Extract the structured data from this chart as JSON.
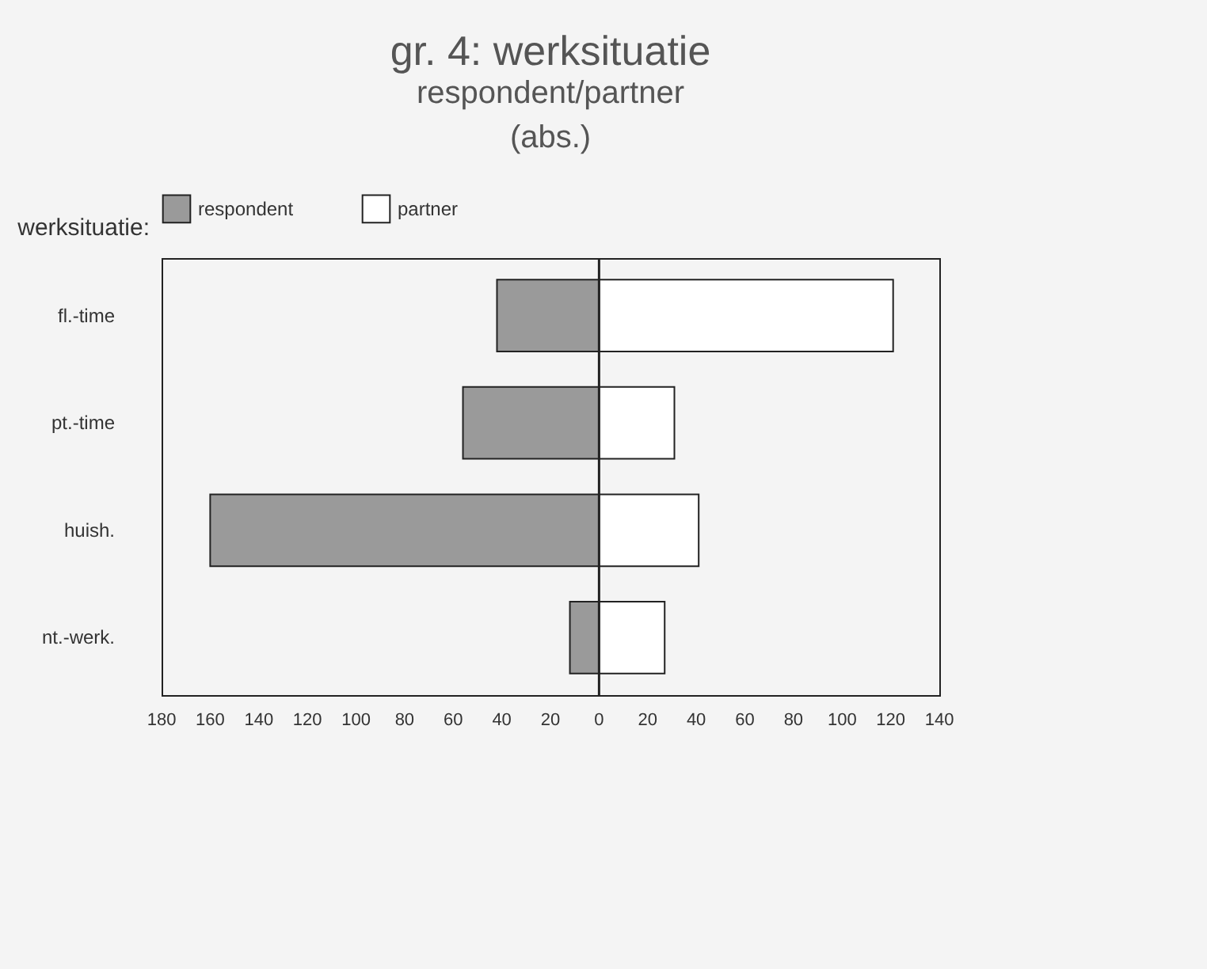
{
  "chart_data": {
    "type": "bar",
    "orientation": "horizontal",
    "stacked": true,
    "title": "gr. 4: werksituatie",
    "subtitle": "respondent/partner\n(abs.)",
    "ylabel": "werksituatie:",
    "categories": [
      "fl.-time",
      "pt.-time",
      "huish.",
      "nt.-werk."
    ],
    "series": [
      {
        "name": "respondent",
        "color": "#9a9a9a",
        "values": [
          -42,
          -56,
          -160,
          -12
        ]
      },
      {
        "name": "partner",
        "color": "#ffffff",
        "values": [
          121,
          31,
          41,
          27
        ]
      }
    ],
    "xlim": [
      -180,
      140
    ],
    "xticks": [
      {
        "value": -180,
        "label": "180"
      },
      {
        "value": -160,
        "label": "160"
      },
      {
        "value": -140,
        "label": "140"
      },
      {
        "value": -120,
        "label": "120"
      },
      {
        "value": -100,
        "label": "100"
      },
      {
        "value": -80,
        "label": "80"
      },
      {
        "value": -60,
        "label": "60"
      },
      {
        "value": -40,
        "label": "40"
      },
      {
        "value": -20,
        "label": "20"
      },
      0,
      20,
      40,
      60,
      80,
      100,
      120,
      140
    ],
    "ref_lines": [
      {
        "axis": "x",
        "value": 0
      }
    ],
    "legend": "top",
    "grid": false
  }
}
